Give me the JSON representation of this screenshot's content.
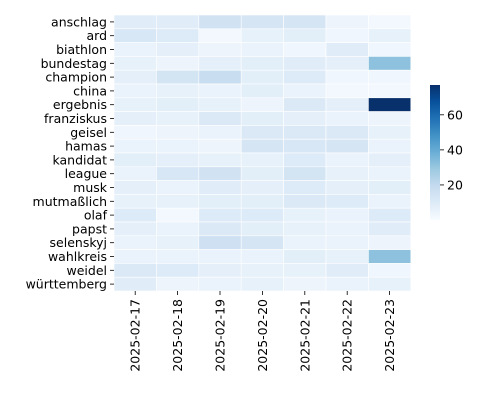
{
  "chart_data": {
    "type": "heatmap",
    "title": "",
    "xlabel": "",
    "ylabel": "",
    "x": [
      "2025-02-17",
      "2025-02-18",
      "2025-02-19",
      "2025-02-20",
      "2025-02-21",
      "2025-02-22",
      "2025-02-23"
    ],
    "y": [
      "anschlag",
      "ard",
      "biathlon",
      "bundestag",
      "champion",
      "china",
      "ergebnis",
      "franziskus",
      "geisel",
      "hamas",
      "kandidat",
      "league",
      "musk",
      "mutmaßlich",
      "olaf",
      "papst",
      "selenskyj",
      "wahlkreis",
      "weidel",
      "württemberg"
    ],
    "values": [
      [
        9,
        9,
        15,
        13,
        13,
        4,
        2
      ],
      [
        12,
        10,
        2,
        6,
        8,
        3,
        6
      ],
      [
        5,
        7,
        4,
        5,
        3,
        9,
        3
      ],
      [
        6,
        4,
        7,
        8,
        9,
        7,
        32
      ],
      [
        7,
        14,
        18,
        8,
        10,
        3,
        3
      ],
      [
        5,
        6,
        5,
        8,
        5,
        2,
        2
      ],
      [
        6,
        8,
        6,
        4,
        11,
        7,
        77
      ],
      [
        7,
        6,
        11,
        8,
        7,
        5,
        4
      ],
      [
        3,
        4,
        5,
        11,
        11,
        11,
        6
      ],
      [
        5,
        5,
        4,
        13,
        12,
        13,
        5
      ],
      [
        8,
        7,
        6,
        6,
        10,
        5,
        7
      ],
      [
        5,
        12,
        15,
        8,
        14,
        6,
        5
      ],
      [
        7,
        5,
        9,
        7,
        10,
        7,
        8
      ],
      [
        6,
        6,
        8,
        8,
        11,
        10,
        5
      ],
      [
        10,
        2,
        10,
        10,
        6,
        5,
        10
      ],
      [
        7,
        5,
        11,
        8,
        6,
        5,
        9
      ],
      [
        5,
        6,
        16,
        13,
        5,
        5,
        4
      ],
      [
        5,
        5,
        5,
        5,
        8,
        6,
        32
      ],
      [
        11,
        10,
        7,
        6,
        6,
        9,
        3
      ],
      [
        9,
        4,
        5,
        6,
        4,
        5,
        6
      ]
    ],
    "colorbar": {
      "min": 0,
      "max": 77,
      "ticks": [
        20,
        40,
        60
      ],
      "colormap": "Blues"
    },
    "grid": false,
    "legend": "colorbar-right"
  }
}
